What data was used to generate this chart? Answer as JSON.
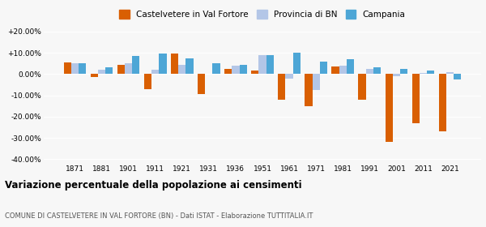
{
  "years": [
    1871,
    1881,
    1901,
    1911,
    1921,
    1931,
    1936,
    1951,
    1961,
    1971,
    1981,
    1991,
    2001,
    2011,
    2021
  ],
  "castelvetere": [
    5.5,
    -1.5,
    4.5,
    -7.0,
    9.5,
    -9.5,
    2.5,
    1.5,
    -12.0,
    -15.0,
    3.5,
    -12.0,
    -32.0,
    -23.0,
    -27.0
  ],
  "provincia_bn": [
    5.0,
    2.0,
    5.0,
    2.0,
    4.5,
    0.0,
    4.0,
    9.0,
    -2.0,
    -7.5,
    4.0,
    2.5,
    -1.0,
    0.5,
    1.0
  ],
  "campania": [
    5.0,
    3.0,
    8.5,
    9.5,
    7.5,
    5.0,
    4.5,
    9.0,
    10.0,
    6.0,
    7.0,
    3.0,
    2.5,
    1.5,
    -2.5
  ],
  "color_castelvetere": "#d95f02",
  "color_provincia": "#b3c6e7",
  "color_campania": "#4da6d6",
  "title1": "Variazione percentuale della popolazione ai censimenti",
  "title2": "COMUNE DI CASTELVETERE IN VAL FORTORE (BN) - Dati ISTAT - Elaborazione TUTTITALIA.IT",
  "legend_labels": [
    "Castelvetere in Val Fortore",
    "Provincia di BN",
    "Campania"
  ],
  "ylim": [
    -42,
    22
  ],
  "yticks": [
    -40,
    -30,
    -20,
    -10,
    0,
    10,
    20
  ],
  "ytick_labels": [
    "-40.00%",
    "-30.00%",
    "-20.00%",
    "-10.00%",
    "0.00%",
    "+10.00%",
    "+20.00%"
  ],
  "background_color": "#f7f7f7",
  "bar_width": 0.28
}
